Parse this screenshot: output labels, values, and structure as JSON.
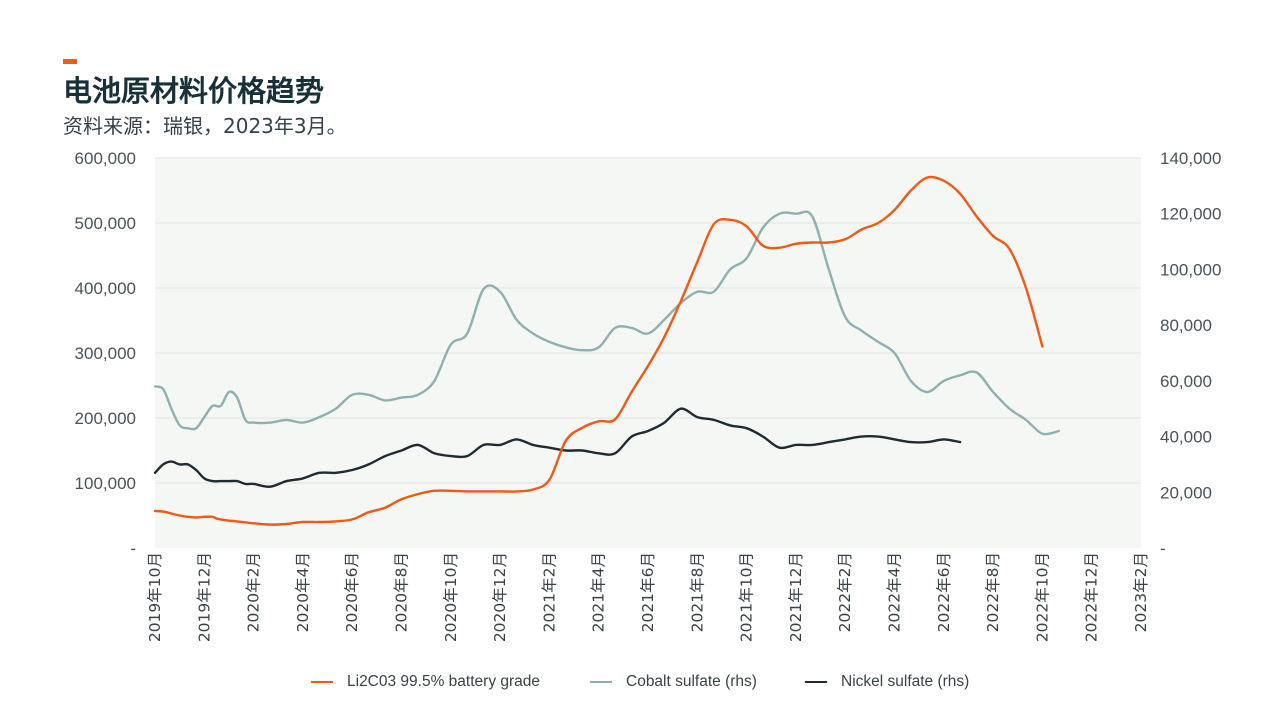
{
  "header": {
    "title": "电池原材料价格趋势",
    "subtitle": "资料来源：瑞银，2023年3月。"
  },
  "colors": {
    "accent": "#f05a14",
    "lithium": "#f05a14",
    "cobalt": "#8fb0b0",
    "nickel": "#1f2b33",
    "plot_bg": "#f5f7f4",
    "grid": "#dfe3e0"
  },
  "chart_data": {
    "type": "line",
    "y_left": {
      "lim": [
        0,
        600000
      ],
      "ticks": [
        0,
        100000,
        200000,
        300000,
        400000,
        500000,
        600000
      ],
      "tick_labels": [
        "-",
        "100,000",
        "200,000",
        "300,000",
        "400,000",
        "500,000",
        "600,000"
      ]
    },
    "y_right": {
      "lim": [
        0,
        140000
      ],
      "ticks": [
        0,
        20000,
        40000,
        60000,
        80000,
        100000,
        120000,
        140000
      ],
      "tick_labels": [
        "-",
        "20,000",
        "40,000",
        "60,000",
        "80,000",
        "100,000",
        "120,000",
        "140,000"
      ]
    },
    "x_tick_labels": [
      "2019年10月",
      "2019年12月",
      "2020年2月",
      "2020年4月",
      "2020年6月",
      "2020年8月",
      "2020年10月",
      "2020年12月",
      "2021年2月",
      "2021年4月",
      "2021年6月",
      "2021年8月",
      "2021年10月",
      "2021年12月",
      "2022年2月",
      "2022年4月",
      "2022年6月",
      "2022年8月",
      "2022年10月",
      "2022年12月",
      "2023年2月"
    ],
    "grid": "horizontal",
    "legend_position": "bottom",
    "series": [
      {
        "name": "Li2C03 99.5% battery grade",
        "axis": "left",
        "color_key": "lithium",
        "points": [
          [
            0,
            57000
          ],
          [
            0.5,
            56000
          ],
          [
            1,
            53000
          ],
          [
            1.5,
            50000
          ],
          [
            2,
            48000
          ],
          [
            2.5,
            47000
          ],
          [
            3,
            48000
          ],
          [
            3.5,
            48000
          ],
          [
            3.8,
            45000
          ],
          [
            4.5,
            42000
          ],
          [
            5,
            41000
          ],
          [
            6,
            38000
          ],
          [
            7,
            36000
          ],
          [
            8,
            37000
          ],
          [
            9,
            40000
          ],
          [
            10,
            40000
          ],
          [
            11,
            41000
          ],
          [
            12,
            44000
          ],
          [
            13,
            55000
          ],
          [
            14,
            62000
          ],
          [
            15,
            75000
          ],
          [
            16,
            83000
          ],
          [
            17,
            88000
          ],
          [
            18,
            88000
          ],
          [
            19,
            87000
          ],
          [
            20,
            87000
          ],
          [
            21,
            87000
          ],
          [
            22,
            87000
          ],
          [
            23,
            90000
          ],
          [
            24,
            105000
          ],
          [
            25,
            165000
          ],
          [
            26,
            185000
          ],
          [
            27,
            195000
          ],
          [
            28,
            198000
          ],
          [
            29,
            240000
          ],
          [
            30,
            280000
          ],
          [
            31,
            325000
          ],
          [
            32,
            380000
          ],
          [
            33,
            440000
          ],
          [
            34,
            498000
          ],
          [
            35,
            505000
          ],
          [
            36,
            495000
          ],
          [
            37,
            465000
          ],
          [
            38,
            462000
          ],
          [
            39,
            468000
          ],
          [
            40,
            470000
          ],
          [
            41,
            470000
          ],
          [
            42,
            475000
          ],
          [
            43,
            490000
          ],
          [
            44,
            500000
          ],
          [
            45,
            520000
          ],
          [
            46,
            550000
          ],
          [
            47,
            570000
          ],
          [
            48,
            565000
          ],
          [
            49,
            545000
          ],
          [
            50,
            510000
          ],
          [
            51,
            480000
          ],
          [
            52,
            460000
          ],
          [
            53,
            400000
          ],
          [
            54,
            310000
          ]
        ]
      },
      {
        "name": "Cobalt sulfate (rhs)",
        "axis": "right",
        "color_key": "cobalt",
        "points": [
          [
            0,
            58000
          ],
          [
            0.5,
            57000
          ],
          [
            1,
            50000
          ],
          [
            1.5,
            44000
          ],
          [
            2,
            43000
          ],
          [
            2.5,
            43000
          ],
          [
            3,
            47000
          ],
          [
            3.5,
            51000
          ],
          [
            4,
            51000
          ],
          [
            4.5,
            56000
          ],
          [
            5,
            54000
          ],
          [
            5.5,
            46000
          ],
          [
            6,
            45000
          ],
          [
            7,
            45000
          ],
          [
            8,
            46000
          ],
          [
            9,
            45000
          ],
          [
            10,
            47000
          ],
          [
            11,
            50000
          ],
          [
            12,
            55000
          ],
          [
            13,
            55000
          ],
          [
            14,
            53000
          ],
          [
            15,
            54000
          ],
          [
            16,
            55000
          ],
          [
            17,
            60000
          ],
          [
            18,
            73000
          ],
          [
            19,
            77000
          ],
          [
            20,
            93000
          ],
          [
            21,
            92000
          ],
          [
            22,
            82000
          ],
          [
            23,
            77000
          ],
          [
            24,
            74000
          ],
          [
            25,
            72000
          ],
          [
            26,
            71000
          ],
          [
            27,
            72000
          ],
          [
            28,
            79000
          ],
          [
            29,
            79000
          ],
          [
            30,
            77000
          ],
          [
            31,
            82000
          ],
          [
            32,
            88000
          ],
          [
            33,
            92000
          ],
          [
            34,
            92000
          ],
          [
            35,
            100000
          ],
          [
            36,
            104000
          ],
          [
            37,
            115000
          ],
          [
            38,
            120000
          ],
          [
            39,
            120000
          ],
          [
            40,
            119000
          ],
          [
            41,
            100000
          ],
          [
            42,
            83000
          ],
          [
            43,
            78000
          ],
          [
            44,
            74000
          ],
          [
            45,
            70000
          ],
          [
            46,
            60000
          ],
          [
            47,
            56000
          ],
          [
            48,
            60000
          ],
          [
            49,
            62000
          ],
          [
            50,
            63000
          ],
          [
            51,
            56000
          ],
          [
            52,
            50000
          ],
          [
            53,
            46000
          ],
          [
            54,
            41000
          ],
          [
            55,
            42000
          ]
        ]
      },
      {
        "name": "Nickel sulfate (rhs)",
        "axis": "right",
        "color_key": "nickel",
        "points": [
          [
            0,
            27000
          ],
          [
            0.5,
            30000
          ],
          [
            1,
            31000
          ],
          [
            1.5,
            30000
          ],
          [
            2,
            30000
          ],
          [
            2.5,
            28000
          ],
          [
            3,
            25000
          ],
          [
            3.5,
            24000
          ],
          [
            4,
            24000
          ],
          [
            4.5,
            24000
          ],
          [
            5,
            24000
          ],
          [
            5.5,
            23000
          ],
          [
            6,
            23000
          ],
          [
            7,
            22000
          ],
          [
            8,
            24000
          ],
          [
            9,
            25000
          ],
          [
            10,
            27000
          ],
          [
            11,
            27000
          ],
          [
            12,
            28000
          ],
          [
            13,
            30000
          ],
          [
            14,
            33000
          ],
          [
            15,
            35000
          ],
          [
            16,
            37000
          ],
          [
            17,
            34000
          ],
          [
            18,
            33000
          ],
          [
            19,
            33000
          ],
          [
            20,
            37000
          ],
          [
            21,
            37000
          ],
          [
            22,
            39000
          ],
          [
            23,
            37000
          ],
          [
            24,
            36000
          ],
          [
            25,
            35000
          ],
          [
            26,
            35000
          ],
          [
            27,
            34000
          ],
          [
            28,
            34000
          ],
          [
            29,
            40000
          ],
          [
            30,
            42000
          ],
          [
            31,
            45000
          ],
          [
            32,
            50000
          ],
          [
            33,
            47000
          ],
          [
            34,
            46000
          ],
          [
            35,
            44000
          ],
          [
            36,
            43000
          ],
          [
            37,
            40000
          ],
          [
            38,
            36000
          ],
          [
            39,
            37000
          ],
          [
            40,
            37000
          ],
          [
            41,
            38000
          ],
          [
            42,
            39000
          ],
          [
            43,
            40000
          ],
          [
            44,
            40000
          ],
          [
            45,
            39000
          ],
          [
            46,
            38000
          ],
          [
            47,
            38000
          ],
          [
            48,
            39000
          ],
          [
            49,
            38000
          ]
        ]
      }
    ]
  }
}
